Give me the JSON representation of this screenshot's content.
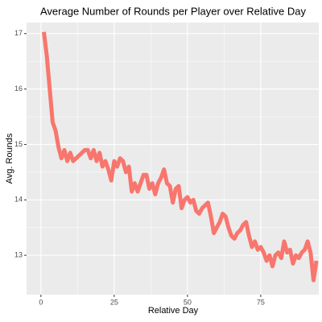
{
  "chart_data": {
    "type": "line",
    "title": "Average Number of Rounds per Player over Relative Day",
    "x_label": "Relative Day",
    "y_label": "Avg. Rounds",
    "x": [
      1,
      2,
      3,
      4,
      5,
      6,
      7,
      8,
      9,
      10,
      11,
      12,
      13,
      14,
      15,
      16,
      17,
      18,
      19,
      20,
      21,
      22,
      23,
      24,
      25,
      26,
      27,
      28,
      29,
      30,
      31,
      32,
      33,
      34,
      35,
      36,
      37,
      38,
      39,
      40,
      41,
      42,
      43,
      44,
      45,
      46,
      47,
      48,
      49,
      50,
      51,
      52,
      53,
      54,
      55,
      56,
      57,
      58,
      59,
      60,
      61,
      62,
      63,
      64,
      65,
      66,
      67,
      68,
      69,
      70,
      71,
      72,
      73,
      74,
      75,
      76,
      77,
      78,
      79,
      80,
      81,
      82,
      83,
      84,
      85,
      86,
      87,
      88,
      89,
      90,
      91,
      92,
      93,
      94
    ],
    "series": [
      {
        "name": "Avg. Rounds",
        "color": "#f8766d",
        "values": [
          17.03,
          16.6,
          16.0,
          15.4,
          15.25,
          14.95,
          14.75,
          14.9,
          14.7,
          14.85,
          14.7,
          14.75,
          14.8,
          14.85,
          14.9,
          14.9,
          14.75,
          14.9,
          14.7,
          14.85,
          14.6,
          14.7,
          14.55,
          14.35,
          14.7,
          14.6,
          14.75,
          14.7,
          14.5,
          14.6,
          14.15,
          14.3,
          14.15,
          14.3,
          14.45,
          14.45,
          14.2,
          14.3,
          14.1,
          14.3,
          14.4,
          14.55,
          14.3,
          14.25,
          13.95,
          14.2,
          14.25,
          13.85,
          14.0,
          14.05,
          13.95,
          14.0,
          13.8,
          13.75,
          13.85,
          13.9,
          13.95,
          13.7,
          13.4,
          13.5,
          13.6,
          13.75,
          13.7,
          13.5,
          13.35,
          13.3,
          13.4,
          13.45,
          13.55,
          13.6,
          13.35,
          13.15,
          13.25,
          13.1,
          13.15,
          13.05,
          12.9,
          13.0,
          12.8,
          13.0,
          13.05,
          12.95,
          13.25,
          13.05,
          13.1,
          12.85,
          13.0,
          12.95,
          13.05,
          13.1,
          13.25,
          13.05,
          12.55,
          12.9
        ]
      }
    ],
    "xlim": [
      -4.9,
      94.8
    ],
    "ylim": [
      12.29,
      17.2
    ],
    "xticks": [
      0,
      25,
      50,
      75
    ],
    "yticks": [
      13,
      14,
      15,
      16,
      17
    ],
    "grid": true
  }
}
